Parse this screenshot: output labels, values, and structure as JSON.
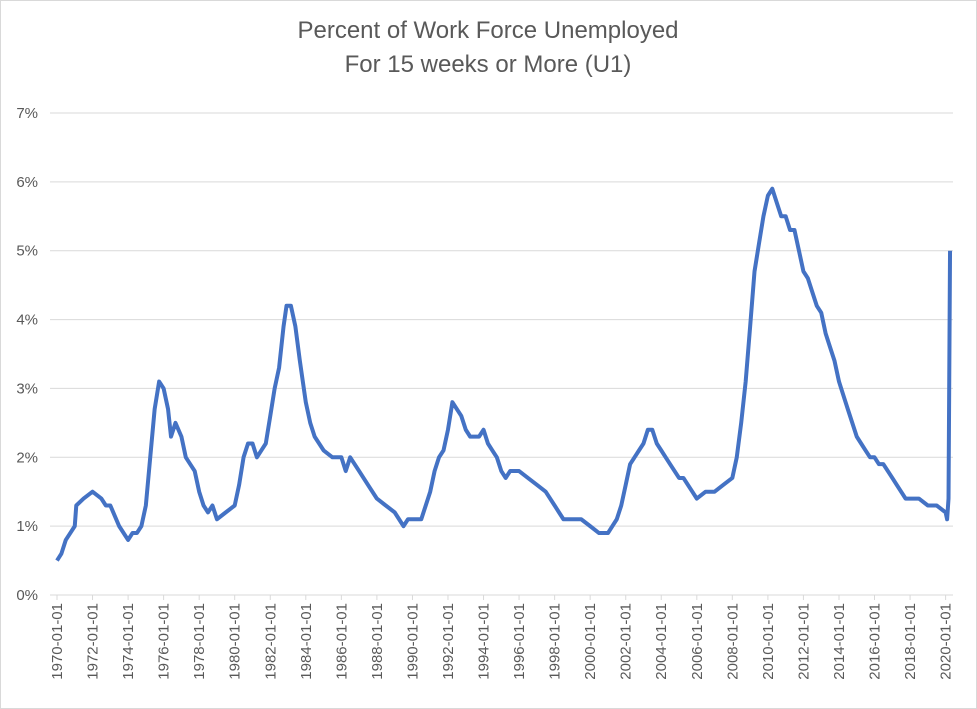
{
  "chart_data": {
    "type": "line",
    "title": [
      "Percent of Work Force Unemployed",
      "For 15 weeks or More (U1)"
    ],
    "color": "#4472c4",
    "grid": true,
    "ylim": [
      0,
      7
    ],
    "yticks": [
      {
        "value": 0,
        "label": "0%"
      },
      {
        "value": 1,
        "label": "1%"
      },
      {
        "value": 2,
        "label": "2%"
      },
      {
        "value": 3,
        "label": "3%"
      },
      {
        "value": 4,
        "label": "4%"
      },
      {
        "value": 5,
        "label": "5%"
      },
      {
        "value": 6,
        "label": "6%"
      },
      {
        "value": 7,
        "label": "7%"
      }
    ],
    "xlim": [
      "1970-01-01",
      "2020-06-01"
    ],
    "xticks": [
      "1970-01-01",
      "1972-01-01",
      "1974-01-01",
      "1976-01-01",
      "1978-01-01",
      "1980-01-01",
      "1982-01-01",
      "1984-01-01",
      "1986-01-01",
      "1988-01-01",
      "1990-01-01",
      "1992-01-01",
      "1994-01-01",
      "1996-01-01",
      "1998-01-01",
      "2000-01-01",
      "2002-01-01",
      "2004-01-01",
      "2006-01-01",
      "2008-01-01",
      "2010-01-01",
      "2012-01-01",
      "2014-01-01",
      "2016-01-01",
      "2018-01-01",
      "2020-01-01"
    ],
    "x": [
      "1970-01-01",
      "1970-04-01",
      "1970-07-01",
      "1970-10-01",
      "1971-01-01",
      "1971-02-01",
      "1971-07-01",
      "1972-01-01",
      "1972-07-01",
      "1972-10-01",
      "1973-01-01",
      "1973-07-01",
      "1974-01-01",
      "1974-04-01",
      "1974-07-01",
      "1974-10-01",
      "1975-01-01",
      "1975-04-01",
      "1975-07-01",
      "1975-10-01",
      "1976-01-01",
      "1976-04-01",
      "1976-06-01",
      "1976-09-01",
      "1977-01-01",
      "1977-04-01",
      "1977-07-01",
      "1977-10-01",
      "1978-01-01",
      "1978-04-01",
      "1978-07-01",
      "1978-10-01",
      "1979-01-01",
      "1979-07-01",
      "1980-01-01",
      "1980-04-01",
      "1980-07-01",
      "1980-10-01",
      "1981-01-01",
      "1981-04-01",
      "1981-07-01",
      "1981-10-01",
      "1982-01-01",
      "1982-04-01",
      "1982-07-01",
      "1982-10-01",
      "1982-12-01",
      "1983-03-01",
      "1983-06-01",
      "1983-09-01",
      "1984-01-01",
      "1984-04-01",
      "1984-07-01",
      "1984-10-01",
      "1985-01-01",
      "1985-07-01",
      "1986-01-01",
      "1986-04-01",
      "1986-07-01",
      "1986-10-01",
      "1987-01-01",
      "1987-07-01",
      "1988-01-01",
      "1988-07-01",
      "1989-01-01",
      "1989-07-01",
      "1989-10-01",
      "1990-01-01",
      "1990-07-01",
      "1990-10-01",
      "1991-01-01",
      "1991-04-01",
      "1991-07-01",
      "1991-10-01",
      "1992-01-01",
      "1992-04-01",
      "1992-07-01",
      "1992-10-01",
      "1993-01-01",
      "1993-04-01",
      "1993-07-01",
      "1993-10-01",
      "1994-01-01",
      "1994-04-01",
      "1994-07-01",
      "1994-10-01",
      "1995-01-01",
      "1995-04-01",
      "1995-07-01",
      "1995-10-01",
      "1996-01-01",
      "1996-07-01",
      "1997-01-01",
      "1997-07-01",
      "1998-01-01",
      "1998-04-01",
      "1998-07-01",
      "1999-01-01",
      "1999-07-01",
      "2000-01-01",
      "2000-07-01",
      "2001-01-01",
      "2001-04-01",
      "2001-07-01",
      "2001-10-01",
      "2002-01-01",
      "2002-04-01",
      "2002-07-01",
      "2002-10-01",
      "2003-01-01",
      "2003-04-01",
      "2003-07-01",
      "2003-10-01",
      "2004-01-01",
      "2004-04-01",
      "2004-07-01",
      "2004-10-01",
      "2005-01-01",
      "2005-04-01",
      "2005-07-01",
      "2005-10-01",
      "2006-01-01",
      "2006-07-01",
      "2007-01-01",
      "2007-07-01",
      "2008-01-01",
      "2008-04-01",
      "2008-07-01",
      "2008-10-01",
      "2009-01-01",
      "2009-04-01",
      "2009-07-01",
      "2009-10-01",
      "2010-01-01",
      "2010-04-01",
      "2010-07-01",
      "2010-10-01",
      "2011-01-01",
      "2011-04-01",
      "2011-07-01",
      "2011-10-01",
      "2012-01-01",
      "2012-04-01",
      "2012-07-01",
      "2012-10-01",
      "2013-01-01",
      "2013-04-01",
      "2013-07-01",
      "2013-10-01",
      "2014-01-01",
      "2014-04-01",
      "2014-07-01",
      "2014-10-01",
      "2015-01-01",
      "2015-04-01",
      "2015-07-01",
      "2015-10-01",
      "2016-01-01",
      "2016-04-01",
      "2016-07-01",
      "2016-10-01",
      "2017-01-01",
      "2017-04-01",
      "2017-07-01",
      "2017-10-01",
      "2018-01-01",
      "2018-07-01",
      "2019-01-01",
      "2019-07-01",
      "2020-01-01",
      "2020-02-01",
      "2020-03-01",
      "2020-04-01"
    ],
    "values": [
      0.5,
      0.6,
      0.8,
      0.9,
      1.0,
      1.3,
      1.4,
      1.5,
      1.4,
      1.3,
      1.3,
      1.0,
      0.8,
      0.9,
      0.9,
      1.0,
      1.3,
      2.0,
      2.7,
      3.1,
      3.0,
      2.7,
      2.3,
      2.5,
      2.3,
      2.0,
      1.9,
      1.8,
      1.5,
      1.3,
      1.2,
      1.3,
      1.1,
      1.2,
      1.3,
      1.6,
      2.0,
      2.2,
      2.2,
      2.0,
      2.1,
      2.2,
      2.6,
      3.0,
      3.3,
      3.9,
      4.2,
      4.2,
      3.9,
      3.4,
      2.8,
      2.5,
      2.3,
      2.2,
      2.1,
      2.0,
      2.0,
      1.8,
      2.0,
      1.9,
      1.8,
      1.6,
      1.4,
      1.3,
      1.2,
      1.0,
      1.1,
      1.1,
      1.1,
      1.3,
      1.5,
      1.8,
      2.0,
      2.1,
      2.4,
      2.8,
      2.7,
      2.6,
      2.4,
      2.3,
      2.3,
      2.3,
      2.4,
      2.2,
      2.1,
      2.0,
      1.8,
      1.7,
      1.8,
      1.8,
      1.8,
      1.7,
      1.6,
      1.5,
      1.3,
      1.2,
      1.1,
      1.1,
      1.1,
      1.0,
      0.9,
      0.9,
      1.0,
      1.1,
      1.3,
      1.6,
      1.9,
      2.0,
      2.1,
      2.2,
      2.4,
      2.4,
      2.2,
      2.1,
      2.0,
      1.9,
      1.8,
      1.7,
      1.7,
      1.6,
      1.5,
      1.4,
      1.5,
      1.5,
      1.6,
      1.7,
      2.0,
      2.5,
      3.1,
      3.9,
      4.7,
      5.1,
      5.5,
      5.8,
      5.9,
      5.7,
      5.5,
      5.5,
      5.3,
      5.3,
      5.0,
      4.7,
      4.6,
      4.4,
      4.2,
      4.1,
      3.8,
      3.6,
      3.4,
      3.1,
      2.9,
      2.7,
      2.5,
      2.3,
      2.2,
      2.1,
      2.0,
      2.0,
      1.9,
      1.9,
      1.8,
      1.7,
      1.6,
      1.5,
      1.4,
      1.4,
      1.4,
      1.3,
      1.3,
      1.2,
      1.1,
      1.4,
      5.0
    ]
  }
}
